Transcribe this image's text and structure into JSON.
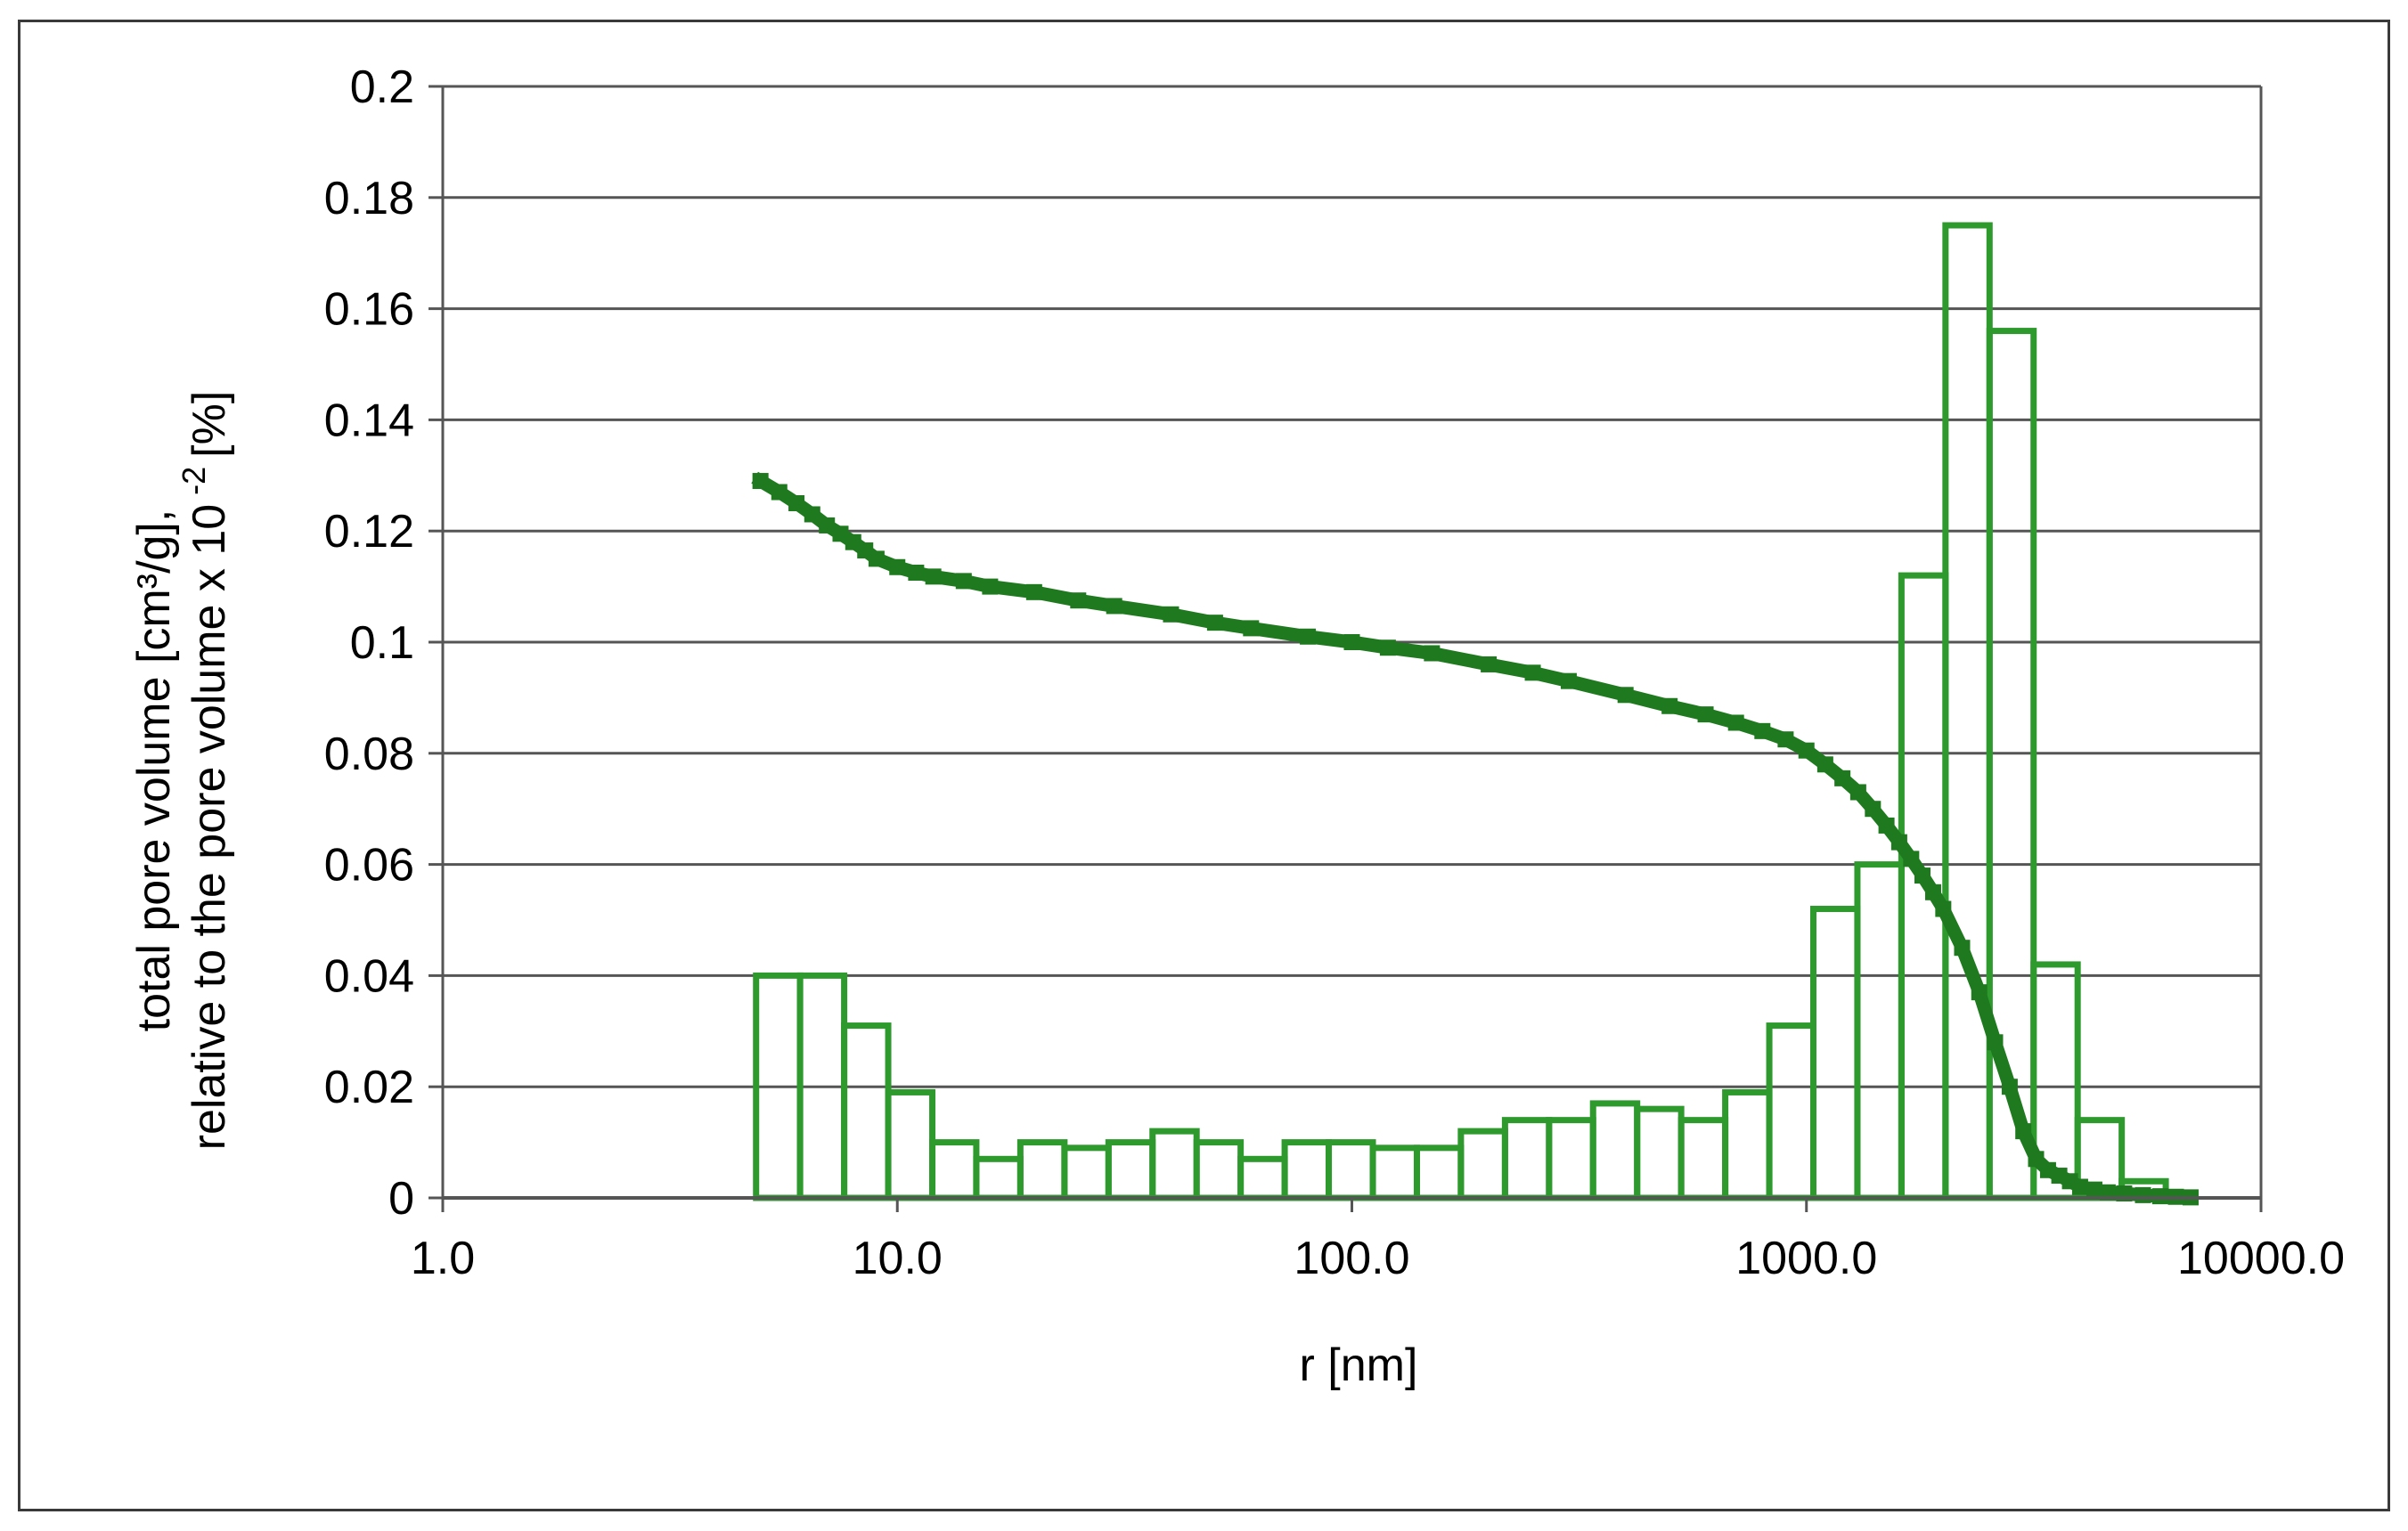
{
  "chart_data": {
    "type": "bar",
    "title": "",
    "xlabel": "r [nm]",
    "ylabel_line1": "total pore volume [cm³/g],",
    "ylabel_line2": "relative to the pore volume x 10",
    "ylabel_exponent": "-2",
    "ylabel_unit": "[%]",
    "x_scale": "log",
    "xlim": [
      1,
      10000
    ],
    "ylim": [
      0,
      0.2
    ],
    "grid": "horizontal",
    "legend": "none",
    "x_ticks": [
      {
        "value": 1,
        "label": "1.0"
      },
      {
        "value": 10,
        "label": "10.0"
      },
      {
        "value": 100,
        "label": "100.0"
      },
      {
        "value": 1000,
        "label": "1000.0"
      },
      {
        "value": 10000,
        "label": "10000.0"
      }
    ],
    "y_ticks": [
      {
        "value": 0,
        "label": "0"
      },
      {
        "value": 0.02,
        "label": "0.02"
      },
      {
        "value": 0.04,
        "label": "0.04"
      },
      {
        "value": 0.06,
        "label": "0.06"
      },
      {
        "value": 0.08,
        "label": "0.08"
      },
      {
        "value": 0.1,
        "label": "0.1"
      },
      {
        "value": 0.12,
        "label": "0.12"
      },
      {
        "value": 0.14,
        "label": "0.14"
      },
      {
        "value": 0.16,
        "label": "0.16"
      },
      {
        "value": 0.18,
        "label": "0.18"
      },
      {
        "value": 0.2,
        "label": "0.2"
      }
    ],
    "colors": {
      "bars": "#2e9a2e",
      "line": "#1f7a1f",
      "grid": "#555555",
      "axis": "#555555"
    },
    "bars": [
      {
        "x_left": 4.89,
        "x_right": 6.11,
        "value": 0.04
      },
      {
        "x_left": 6.11,
        "x_right": 7.64,
        "value": 0.04
      },
      {
        "x_left": 7.64,
        "x_right": 9.55,
        "value": 0.031
      },
      {
        "x_left": 9.55,
        "x_right": 11.94,
        "value": 0.019
      },
      {
        "x_left": 11.94,
        "x_right": 14.92,
        "value": 0.01
      },
      {
        "x_left": 14.92,
        "x_right": 18.65,
        "value": 0.007
      },
      {
        "x_left": 18.65,
        "x_right": 23.32,
        "value": 0.01
      },
      {
        "x_left": 23.32,
        "x_right": 29.15,
        "value": 0.009
      },
      {
        "x_left": 29.15,
        "x_right": 36.43,
        "value": 0.01
      },
      {
        "x_left": 36.43,
        "x_right": 45.54,
        "value": 0.012
      },
      {
        "x_left": 45.54,
        "x_right": 56.92,
        "value": 0.01
      },
      {
        "x_left": 56.92,
        "x_right": 71.15,
        "value": 0.007
      },
      {
        "x_left": 71.15,
        "x_right": 88.94,
        "value": 0.01
      },
      {
        "x_left": 88.94,
        "x_right": 111.2,
        "value": 0.01
      },
      {
        "x_left": 111.2,
        "x_right": 139.0,
        "value": 0.009
      },
      {
        "x_left": 139.0,
        "x_right": 173.7,
        "value": 0.009
      },
      {
        "x_left": 173.7,
        "x_right": 217.2,
        "value": 0.012
      },
      {
        "x_left": 217.2,
        "x_right": 271.5,
        "value": 0.014
      },
      {
        "x_left": 271.5,
        "x_right": 339.3,
        "value": 0.014
      },
      {
        "x_left": 339.3,
        "x_right": 424.2,
        "value": 0.017
      },
      {
        "x_left": 424.2,
        "x_right": 530.2,
        "value": 0.016
      },
      {
        "x_left": 530.2,
        "x_right": 662.8,
        "value": 0.014
      },
      {
        "x_left": 662.8,
        "x_right": 828.5,
        "value": 0.019
      },
      {
        "x_left": 828.5,
        "x_right": 1035.6,
        "value": 0.031
      },
      {
        "x_left": 1035.6,
        "x_right": 1294.5,
        "value": 0.052
      },
      {
        "x_left": 1294.5,
        "x_right": 1618.1,
        "value": 0.06
      },
      {
        "x_left": 1618.1,
        "x_right": 2022.6,
        "value": 0.112
      },
      {
        "x_left": 2022.6,
        "x_right": 2528.3,
        "value": 0.175
      },
      {
        "x_left": 2528.3,
        "x_right": 3160.4,
        "value": 0.156
      },
      {
        "x_left": 3160.4,
        "x_right": 3950.5,
        "value": 0.042
      },
      {
        "x_left": 3950.5,
        "x_right": 4938.1,
        "value": 0.014
      },
      {
        "x_left": 4938.1,
        "x_right": 6172.6,
        "value": 0.003
      }
    ],
    "cumulative_curve": {
      "x": [
        5,
        5.5,
        6,
        6.5,
        7,
        7.5,
        8,
        8.5,
        9,
        10,
        11,
        12,
        14,
        16,
        20,
        25,
        30,
        40,
        50,
        60,
        80,
        100,
        120,
        150,
        200,
        250,
        300,
        400,
        500,
        600,
        700,
        800,
        900,
        1000,
        1100,
        1200,
        1300,
        1400,
        1500,
        1600,
        1700,
        1800,
        1900,
        2000,
        2200,
        2400,
        2600,
        2800,
        3000,
        3200,
        3400,
        3600,
        3800,
        4000,
        4300,
        4600,
        5000,
        5500,
        6000,
        6500,
        7000
      ],
      "y": [
        0.129,
        0.127,
        0.125,
        0.123,
        0.121,
        0.1195,
        0.118,
        0.1165,
        0.115,
        0.1135,
        0.1125,
        0.1118,
        0.111,
        0.11,
        0.109,
        0.1075,
        0.1065,
        0.105,
        0.1035,
        0.1025,
        0.101,
        0.1,
        0.099,
        0.098,
        0.096,
        0.0945,
        0.093,
        0.0905,
        0.0885,
        0.087,
        0.0855,
        0.084,
        0.0825,
        0.0805,
        0.078,
        0.0755,
        0.073,
        0.07,
        0.067,
        0.064,
        0.061,
        0.058,
        0.055,
        0.052,
        0.045,
        0.037,
        0.028,
        0.02,
        0.012,
        0.007,
        0.005,
        0.004,
        0.003,
        0.002,
        0.0015,
        0.001,
        0.0008,
        0.0005,
        0.0003,
        0.0002,
        0.0001
      ]
    }
  }
}
